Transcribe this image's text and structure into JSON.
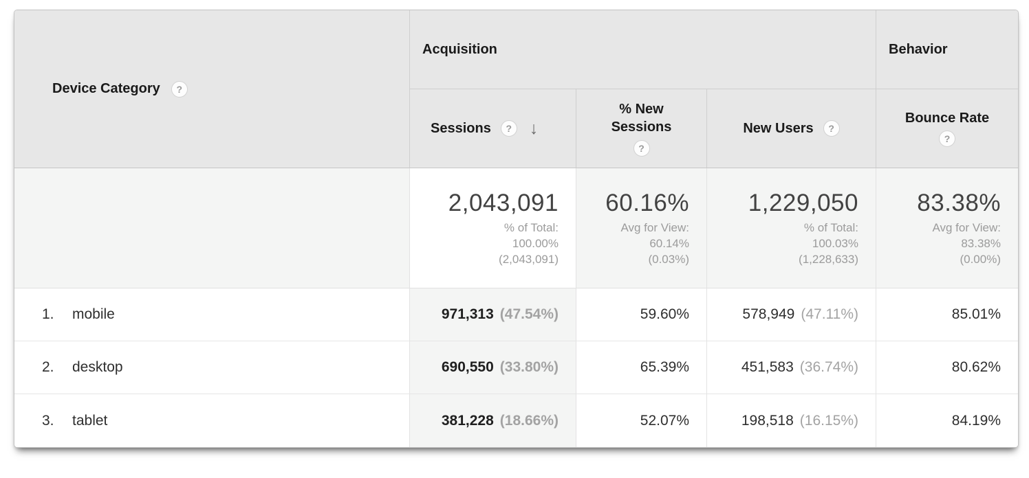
{
  "colors": {
    "header_bg": "#e7e7e7",
    "sorted_column_bg": "#f4f5f4",
    "summary_row_bg": "#f4f5f4",
    "border": "#cfcfcf",
    "text_primary": "#1a1a1a",
    "text_secondary": "#9b9b9b"
  },
  "header": {
    "dimension_label": "Device Category",
    "groups": {
      "acquisition": "Acquisition",
      "behavior": "Behavior"
    },
    "columns": {
      "sessions": "Sessions",
      "new_sessions_line1": "% New",
      "new_sessions_line2": "Sessions",
      "new_users": "New Users",
      "bounce_rate": "Bounce Rate"
    },
    "help_icon": "?",
    "sort_icon": "↓"
  },
  "summary": {
    "sessions": {
      "value": "2,043,091",
      "sub1": "% of Total:",
      "sub2": "100.00%",
      "sub3": "(2,043,091)"
    },
    "new_sessions": {
      "value": "60.16%",
      "sub1": "Avg for View:",
      "sub2": "60.14%",
      "sub3": "(0.03%)"
    },
    "new_users": {
      "value": "1,229,050",
      "sub1": "% of Total:",
      "sub2": "100.03%",
      "sub3": "(1,228,633)"
    },
    "bounce_rate": {
      "value": "83.38%",
      "sub1": "Avg for View:",
      "sub2": "83.38%",
      "sub3": "(0.00%)"
    }
  },
  "rows": [
    {
      "rank": "1.",
      "label": "mobile",
      "sessions": "971,313",
      "sessions_share": "(47.54%)",
      "new_sessions": "59.60%",
      "new_users": "578,949",
      "new_users_share": "(47.11%)",
      "bounce_rate": "85.01%"
    },
    {
      "rank": "2.",
      "label": "desktop",
      "sessions": "690,550",
      "sessions_share": "(33.80%)",
      "new_sessions": "65.39%",
      "new_users": "451,583",
      "new_users_share": "(36.74%)",
      "bounce_rate": "80.62%"
    },
    {
      "rank": "3.",
      "label": "tablet",
      "sessions": "381,228",
      "sessions_share": "(18.66%)",
      "new_sessions": "52.07%",
      "new_users": "198,518",
      "new_users_share": "(16.15%)",
      "bounce_rate": "84.19%"
    }
  ]
}
